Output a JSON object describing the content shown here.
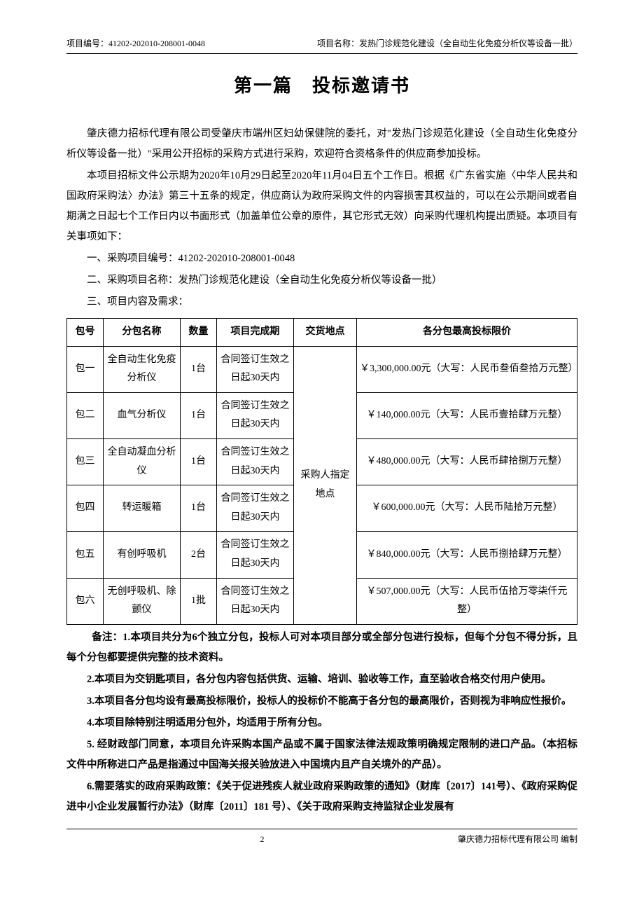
{
  "header": {
    "left": "项目编号：41202-202010-208001-0048",
    "right": "项目名称：发热门诊规范化建设（全自动生化免疫分析仪等设备一批）"
  },
  "title": "第一篇　投标邀请书",
  "para1": "肇庆德力招标代理有限公司受肇庆市端州区妇幼保健院的委托，对\"发热门诊规范化建设（全自动生化免疫分析仪等设备一批）\"采用公开招标的采购方式进行采购，欢迎符合资格条件的供应商参加投标。",
  "para2": "本项目招标文件公示期为2020年10月29日起至2020年11月04日五个工作日。根据《广东省实施〈中华人民共和国政府采购法〉办法》第三十五条的规定，供应商认为政府采购文件的内容损害其权益的，可以在公示期间或者自期满之日起七个工作日内以书面形式（加盖单位公章的原件，其它形式无效）向采购代理机构提出质疑。本项目有关事项如下：",
  "item1": "一、采购项目编号：41202-202010-208001-0048",
  "item2": "二、采购项目名称：发热门诊规范化建设（全自动生化免疫分析仪等设备一批）",
  "item3": "三、项目内容及需求：",
  "table": {
    "headers": {
      "pkg": "包号",
      "name": "分包名称",
      "qty": "数量",
      "period": "项目完成期",
      "location": "交货地点",
      "price": "各分包最高投标限价"
    },
    "location_merged": "采购人指定地点",
    "rows": [
      {
        "pkg": "包一",
        "name": "全自动生化免疫分析仪",
        "qty": "1台",
        "period": "合同签订生效之日起30天内",
        "price": "￥3,300,000.00元（大写：人民币叁佰叁拾万元整）"
      },
      {
        "pkg": "包二",
        "name": "血气分析仪",
        "qty": "1台",
        "period": "合同签订生效之日起30天内",
        "price": "￥140,000.00元（大写：人民币壹拾肆万元整）"
      },
      {
        "pkg": "包三",
        "name": "全自动凝血分析仪",
        "qty": "1台",
        "period": "合同签订生效之日起30天内",
        "price": "￥480,000.00元（大写：人民币肆拾捌万元整）"
      },
      {
        "pkg": "包四",
        "name": "转运暖箱",
        "qty": "1台",
        "period": "合同签订生效之日起30天内",
        "price": "￥600,000.00元（大写：人民币陆拾万元整）"
      },
      {
        "pkg": "包五",
        "name": "有创呼吸机",
        "qty": "2台",
        "period": "合同签订生效之日起30天内",
        "price": "￥840,000.00元（大写：人民币捌拾肆万元整）"
      },
      {
        "pkg": "包六",
        "name": "无创呼吸机、除颤仪",
        "qty": "1批",
        "period": "合同签订生效之日起30天内",
        "price": "￥507,000.00元（大写：人民币伍拾万零柒仟元整）"
      }
    ]
  },
  "notes": {
    "n1": "备注：1.本项目共分为6个独立分包，投标人可对本项目部分或全部分包进行投标，但每个分包不得分拆，且每个分包都要提供完整的技术资料。",
    "n2": "2.本项目为交钥匙项目，各分包内容包括供货、运输、培训、验收等工作，直至验收合格交付用户使用。",
    "n3": "3.本项目各分包均设有最高投标限价，投标人的投标价不能高于各分包的最高限价，否则视为非响应性报价。",
    "n4": "4.本项目除特别注明适用分包外，均适用于所有分包。",
    "n5": "5. 经财政部门同意，本项目允许采购本国产品或不属于国家法律法规政策明确规定限制的进口产品。（本招标文件中所称进口产品是指通过中国海关报关验放进入中国境内且产自关境外的产品）。",
    "n6": "6.需要落实的政府采购政策：《关于促进残疾人就业政府采购政策的通知》（财库〔2017〕141号）、《政府采购促进中小企业发展暂行办法》（财库〔2011〕181 号）、《关于政府采购支持监狱企业发展有"
  },
  "footer": {
    "page": "2",
    "right": "肇庆德力招标代理有限公司 编制"
  }
}
